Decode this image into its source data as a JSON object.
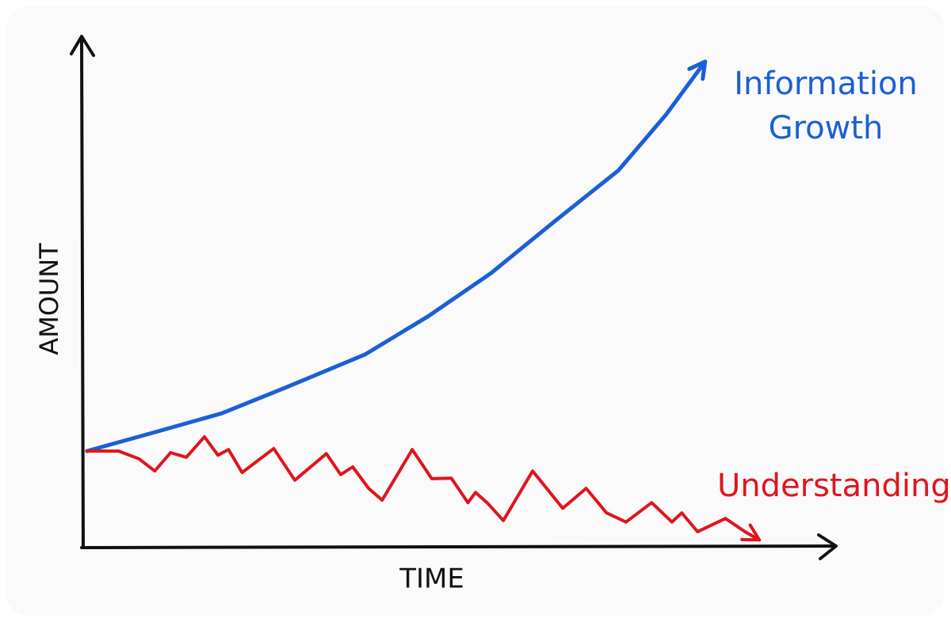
{
  "chart_data": {
    "type": "line",
    "xlabel": "TIME",
    "ylabel": "AMOUNT",
    "xlim": [
      0,
      100
    ],
    "ylim": [
      0,
      100
    ],
    "series": [
      {
        "name": "Information Growth",
        "color": "#1a5fd6",
        "x": [
          0.5,
          10,
          18.4,
          26.8,
          37.4,
          45.8,
          54.2,
          62.6,
          71.1,
          77.4,
          82.6
        ],
        "values": [
          18.6,
          22.5,
          26.0,
          31.0,
          37.5,
          45.0,
          53.5,
          63.6,
          73.6,
          84.5,
          94.9
        ]
      },
      {
        "name": "Understanding",
        "color": "#e0141e",
        "x": [
          0.5,
          4.7,
          7.4,
          9.5,
          11.6,
          13.7,
          16.1,
          17.9,
          19.3,
          21.1,
          25.3,
          28.1,
          32.3,
          34.2,
          35.8,
          37.9,
          39.7,
          43.7,
          46.3,
          48.9,
          51.1,
          52.1,
          53.7,
          55.8,
          59.7,
          63.7,
          66.8,
          69.5,
          72.1,
          75.5,
          78.2,
          79.5,
          81.6,
          85.3,
          87.9,
          89.8
        ],
        "values": [
          18.6,
          18.6,
          17.1,
          14.7,
          18.3,
          17.4,
          21.4,
          17.8,
          18.9,
          14.4,
          19.1,
          12.9,
          18.1,
          14.0,
          15.5,
          11.3,
          9.0,
          18.9,
          13.2,
          13.3,
          8.5,
          10.5,
          8.4,
          5.0,
          14.7,
          7.4,
          11.3,
          6.5,
          4.7,
          8.5,
          4.7,
          6.5,
          2.8,
          5.4,
          2.8,
          1.2
        ]
      }
    ]
  }
}
